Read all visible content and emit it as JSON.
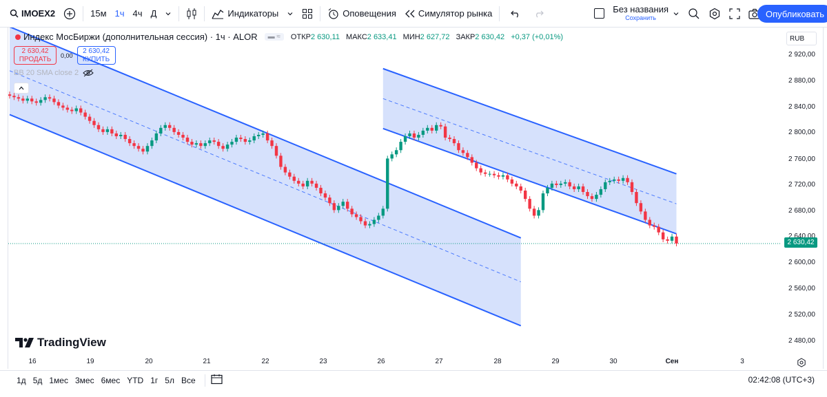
{
  "toolbar": {
    "symbol": "IMOEX2",
    "intervals": [
      "15м",
      "1ч",
      "4ч",
      "Д"
    ],
    "indicators_label": "Индикаторы",
    "alerts_label": "Оповещения",
    "replay_label": "Симулятор рынка",
    "layout_name": "Без названия",
    "save_label": "Сохранить",
    "publish_label": "Опубликовать"
  },
  "legend": {
    "title": "Индекс МосБиржи (дополнительная сессия) · 1ч · ALOR",
    "open_label": "ОТКР",
    "open": "2 630,11",
    "high_label": "МАКС",
    "high": "2 633,41",
    "low_label": "МИН",
    "low": "2 627,72",
    "close_label": "ЗАКР",
    "close": "2 630,42",
    "change": "+0,37 (+0,01%)",
    "sell_price": "2 630,42",
    "sell_label": "ПРОДАТЬ",
    "spread": "0,00",
    "buy_price": "2 630,42",
    "buy_label": "КУПИТЬ",
    "indicator": "BB 20 SMA close 2"
  },
  "price_scale": {
    "currency": "RUB",
    "labels": [
      "2 920,00",
      "2 880,00",
      "2 840,00",
      "2 800,00",
      "2 760,00",
      "2 720,00",
      "2 680,00",
      "2 640,00",
      "2 600,00",
      "2 560,00",
      "2 520,00",
      "2 480,00"
    ],
    "last_price": "2 630,42"
  },
  "time_axis": [
    "16",
    "19",
    "20",
    "21",
    "22",
    "23",
    "26",
    "27",
    "28",
    "29",
    "30",
    "Сен",
    "3"
  ],
  "brand": "TradingView",
  "bottom": {
    "ranges": [
      "1д",
      "5д",
      "1мес",
      "3мес",
      "6мес",
      "YTD",
      "1г",
      "5л",
      "Все"
    ],
    "clock": "02:42:08 (UTC+3)"
  },
  "colors": {
    "up": "#089981",
    "down": "#f23645",
    "accent": "#2962ff",
    "channel_fill": "#cfdcfc"
  },
  "chart_data": {
    "type": "candlestick",
    "title": "Индекс МосБиржи (дополнительная сессия) · 1ч · ALOR",
    "ylim": [
      2470,
      2940
    ],
    "x_categories": [
      "16",
      "19",
      "20",
      "21",
      "22",
      "23",
      "26",
      "27",
      "28",
      "29",
      "30",
      "Сен",
      "3"
    ],
    "closes": [
      2842,
      2840,
      2838,
      2835,
      2838,
      2834,
      2832,
      2836,
      2840,
      2838,
      2833,
      2828,
      2825,
      2822,
      2820,
      2824,
      2818,
      2812,
      2806,
      2800,
      2794,
      2790,
      2794,
      2788,
      2784,
      2786,
      2780,
      2774,
      2770,
      2766,
      2762,
      2770,
      2778,
      2788,
      2796,
      2800,
      2796,
      2790,
      2786,
      2782,
      2776,
      2772,
      2774,
      2770,
      2774,
      2778,
      2776,
      2770,
      2766,
      2772,
      2776,
      2782,
      2780,
      2776,
      2778,
      2784,
      2786,
      2788,
      2778,
      2770,
      2756,
      2740,
      2732,
      2726,
      2720,
      2716,
      2712,
      2720,
      2716,
      2710,
      2702,
      2696,
      2688,
      2678,
      2684,
      2690,
      2680,
      2672,
      2668,
      2662,
      2656,
      2658,
      2664,
      2670,
      2680,
      2752,
      2758,
      2764,
      2776,
      2784,
      2788,
      2782,
      2786,
      2792,
      2796,
      2792,
      2800,
      2798,
      2782,
      2780,
      2774,
      2764,
      2760,
      2754,
      2746,
      2738,
      2732,
      2730,
      2730,
      2728,
      2726,
      2728,
      2722,
      2716,
      2712,
      2706,
      2694,
      2680,
      2670,
      2678,
      2702,
      2710,
      2716,
      2714,
      2716,
      2718,
      2712,
      2708,
      2712,
      2704,
      2698,
      2694,
      2700,
      2708,
      2718,
      2720,
      2722,
      2720,
      2724,
      2718,
      2704,
      2688,
      2676,
      2664,
      2656,
      2654,
      2646,
      2636,
      2634,
      2640,
      2630
    ],
    "channels": [
      {
        "name": "left",
        "start": [
          0,
          2878
        ],
        "end": [
          115,
          2575
        ],
        "width": 63
      },
      {
        "name": "right",
        "start": [
          84,
          2838
        ],
        "end": [
          150,
          2687
        ],
        "width": 43
      }
    ]
  }
}
